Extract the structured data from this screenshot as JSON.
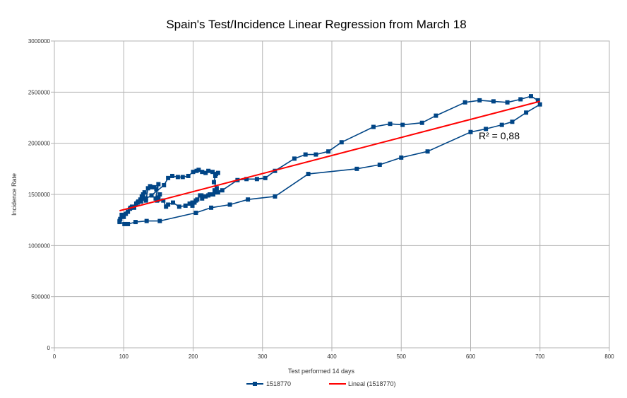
{
  "chart_data": {
    "type": "scatter",
    "title": "Spain's Test/Incidence Linear Regression from March 18",
    "xlabel": "Test performed 14 days",
    "ylabel": "Incidence Rate",
    "xlim": [
      0,
      800
    ],
    "ylim": [
      0,
      3000000
    ],
    "x_ticks": [
      "0",
      "100",
      "200",
      "300",
      "400",
      "500",
      "600",
      "700",
      "800"
    ],
    "y_ticks": [
      "0",
      "500000",
      "1000000",
      "1500000",
      "2000000",
      "2500000",
      "3000000"
    ],
    "grid": true,
    "legend_position": "bottom",
    "series": [
      {
        "name": "1518770",
        "color": "#004586",
        "points": [
          [
            94,
            1240000
          ],
          [
            95,
            1260000
          ],
          [
            97,
            1300000
          ],
          [
            100,
            1280000
          ],
          [
            103,
            1310000
          ],
          [
            106,
            1330000
          ],
          [
            109,
            1360000
          ],
          [
            112,
            1380000
          ],
          [
            115,
            1370000
          ],
          [
            118,
            1410000
          ],
          [
            121,
            1430000
          ],
          [
            124,
            1450000
          ],
          [
            126,
            1480000
          ],
          [
            128,
            1500000
          ],
          [
            130,
            1520000
          ],
          [
            129,
            1460000
          ],
          [
            132,
            1440000
          ],
          [
            135,
            1560000
          ],
          [
            138,
            1580000
          ],
          [
            141,
            1570000
          ],
          [
            144,
            1570000
          ],
          [
            147,
            1550000
          ],
          [
            150,
            1600000
          ],
          [
            146,
            1460000
          ],
          [
            148,
            1440000
          ],
          [
            150,
            1470000
          ],
          [
            152,
            1500000
          ],
          [
            150,
            1450000
          ],
          [
            157,
            1440000
          ],
          [
            161,
            1380000
          ],
          [
            164,
            1400000
          ],
          [
            171,
            1420000
          ],
          [
            180,
            1380000
          ],
          [
            189,
            1390000
          ],
          [
            195,
            1410000
          ],
          [
            199,
            1420000
          ],
          [
            199,
            1390000
          ],
          [
            202,
            1420000
          ],
          [
            204,
            1440000
          ],
          [
            206,
            1450000
          ],
          [
            210,
            1490000
          ],
          [
            213,
            1460000
          ],
          [
            218,
            1480000
          ],
          [
            224,
            1500000
          ],
          [
            232,
            1520000
          ],
          [
            242,
            1540000
          ],
          [
            264,
            1640000
          ],
          [
            277,
            1650000
          ],
          [
            292,
            1650000
          ],
          [
            304,
            1660000
          ],
          [
            318,
            1730000
          ],
          [
            346,
            1850000
          ],
          [
            362,
            1890000
          ],
          [
            377,
            1890000
          ],
          [
            395,
            1920000
          ],
          [
            414,
            2010000
          ],
          [
            460,
            2160000
          ],
          [
            484,
            2190000
          ],
          [
            502,
            2180000
          ],
          [
            530,
            2200000
          ],
          [
            550,
            2270000
          ],
          [
            592,
            2400000
          ],
          [
            613,
            2420000
          ],
          [
            633,
            2410000
          ],
          [
            653,
            2400000
          ],
          [
            672,
            2430000
          ],
          [
            687,
            2460000
          ],
          [
            697,
            2420000
          ],
          [
            700,
            2380000
          ],
          [
            680,
            2300000
          ],
          [
            660,
            2210000
          ],
          [
            645,
            2180000
          ],
          [
            622,
            2140000
          ],
          [
            600,
            2110000
          ],
          [
            538,
            1920000
          ],
          [
            500,
            1860000
          ],
          [
            469,
            1790000
          ],
          [
            436,
            1750000
          ],
          [
            366,
            1700000
          ],
          [
            318,
            1480000
          ],
          [
            279,
            1450000
          ],
          [
            253,
            1400000
          ],
          [
            226,
            1370000
          ],
          [
            204,
            1320000
          ],
          [
            152,
            1240000
          ],
          [
            133,
            1240000
          ],
          [
            117,
            1230000
          ],
          [
            106,
            1210000
          ],
          [
            101,
            1210000
          ],
          [
            94,
            1230000
          ],
          [
            98,
            1300000
          ],
          [
            110,
            1370000
          ],
          [
            120,
            1420000
          ],
          [
            125,
            1430000
          ],
          [
            132,
            1460000
          ],
          [
            140,
            1490000
          ],
          [
            158,
            1590000
          ],
          [
            164,
            1660000
          ],
          [
            170,
            1680000
          ],
          [
            178,
            1670000
          ],
          [
            185,
            1670000
          ],
          [
            193,
            1680000
          ],
          [
            200,
            1720000
          ],
          [
            205,
            1730000
          ],
          [
            208,
            1740000
          ],
          [
            213,
            1720000
          ],
          [
            218,
            1710000
          ],
          [
            222,
            1730000
          ],
          [
            228,
            1720000
          ],
          [
            233,
            1700000
          ],
          [
            236,
            1710000
          ],
          [
            232,
            1680000
          ],
          [
            230,
            1620000
          ],
          [
            234,
            1560000
          ],
          [
            231,
            1540000
          ],
          [
            236,
            1520000
          ],
          [
            229,
            1500000
          ],
          [
            222,
            1490000
          ],
          [
            212,
            1490000
          ]
        ]
      }
    ],
    "trendline": {
      "name": "Lineal (1518770)",
      "color": "#ff0000",
      "x": [
        94,
        700
      ],
      "y": [
        1340000,
        2410000
      ]
    },
    "annotation": "R² = 0,88"
  }
}
